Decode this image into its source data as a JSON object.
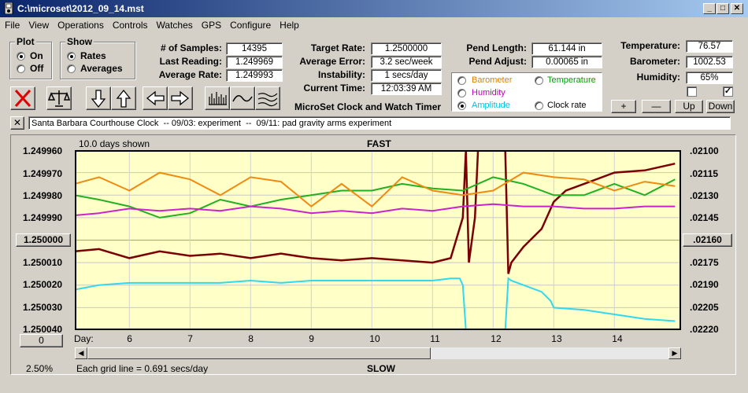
{
  "window": {
    "title": "C:\\microset\\2012_09_14.mst"
  },
  "menu": [
    "File",
    "View",
    "Operations",
    "Controls",
    "Watches",
    "GPS",
    "Configure",
    "Help"
  ],
  "plot_group": {
    "title": "Plot",
    "on": "On",
    "off": "Off",
    "selected": "On"
  },
  "show_group": {
    "title": "Show",
    "rates": "Rates",
    "averages": "Averages",
    "selected": "Rates"
  },
  "stats": {
    "samples_label": "# of Samples:",
    "samples": "14395",
    "last_label": "Last Reading:",
    "last": "1.249969",
    "avg_label": "Average Rate:",
    "avg": "1.249993"
  },
  "rate": {
    "target_label": "Target Rate:",
    "target": "1.2500000",
    "err_label": "Average Error:",
    "err": "3.2 sec/week",
    "inst_label": "Instability:",
    "inst": "1 secs/day",
    "time_label": "Current Time:",
    "time": "12:03:39 AM"
  },
  "pend": {
    "len_label": "Pend Length:",
    "len": "61.144 in",
    "adj_label": "Pend Adjust:",
    "adj": "0.00065 in"
  },
  "env": {
    "temp_label": "Temperature:",
    "temp": "76.57",
    "baro_label": "Barometer:",
    "baro": "1002.53",
    "hum_label": "Humidity:",
    "hum": "65%",
    "chk1": "",
    "chk2": "✓"
  },
  "series_select": {
    "barometer": "Barometer",
    "temperature": "Temperature",
    "humidity": "Humidity",
    "amplitude": "Amplitude",
    "clock_rate": "Clock rate",
    "selected": "Amplitude",
    "colors": {
      "barometer": "#e08000",
      "temperature": "#00a000",
      "humidity": "#c000c0",
      "amplitude": "#00c0e0",
      "clock_rate": "#000000"
    }
  },
  "buttons": {
    "plus": "+",
    "minus": "—",
    "up": "Up",
    "down": "Down"
  },
  "app_title": "MicroSet Clock and Watch Timer",
  "notes": "Santa Barbara Courthouse Clock  -- 09/03: experiment  --  09/11: pad gravity arms experiment",
  "close_x": "✕",
  "graph": {
    "days_shown": "10.0 days shown",
    "fast": "FAST",
    "slow": "SLOW",
    "day_label": "Day:",
    "grid_note": "Each grid line = 0.691 secs/day",
    "zoom": "2.50%",
    "left_center_btn": "1.250000",
    "right_center_btn": ".02160",
    "bottom_btn": "0",
    "left_ticks": [
      "1.249960",
      "1.249970",
      "1.249980",
      "1.249990",
      "1.250000",
      "1.250010",
      "1.250020",
      "1.250030",
      "1.250040"
    ],
    "right_ticks": [
      ".02100",
      ".02115",
      ".02130",
      ".02145",
      ".02160",
      ".02175",
      ".02190",
      ".02205",
      ".02220"
    ],
    "day_ticks": [
      "6",
      "7",
      "8",
      "9",
      "10",
      "11",
      "12",
      "13",
      "14"
    ]
  },
  "chart_data": {
    "type": "line",
    "xlabel": "Day:",
    "x_range": [
      5.1,
      15.1
    ],
    "ylim_left": [
      1.24996,
      1.25004
    ],
    "ylim_right": [
      0.021,
      0.0222
    ],
    "series": [
      {
        "name": "Clock rate",
        "color": "#7a0000",
        "x": [
          5.1,
          5.5,
          6.0,
          6.5,
          7.0,
          7.5,
          8.0,
          8.5,
          9.0,
          9.5,
          10.0,
          10.5,
          11.0,
          11.3,
          11.5,
          11.55,
          11.6,
          11.7,
          11.75,
          11.8,
          12.2,
          12.25,
          12.3,
          12.5,
          12.8,
          13.0,
          13.2,
          13.5,
          14.0,
          14.5,
          15.0
        ],
        "values": [
          1.250005,
          1.250004,
          1.250008,
          1.250005,
          1.250007,
          1.250006,
          1.250008,
          1.250006,
          1.250008,
          1.250009,
          1.250008,
          1.250009,
          1.25001,
          1.250008,
          1.24999,
          1.24996,
          1.25001,
          1.24999,
          1.24996,
          1.24996,
          1.24996,
          1.250015,
          1.25001,
          1.250003,
          1.249995,
          1.249983,
          1.249978,
          1.249975,
          1.24997,
          1.249969,
          1.249966
        ]
      },
      {
        "name": "Temperature",
        "color": "#20b020",
        "x": [
          5.1,
          5.5,
          6.0,
          6.5,
          7.0,
          7.5,
          8.0,
          8.5,
          9.0,
          9.5,
          10.0,
          10.5,
          11.0,
          11.5,
          12.0,
          12.5,
          13.0,
          13.5,
          14.0,
          14.5,
          15.0
        ],
        "values": [
          1.24998,
          1.249982,
          1.249985,
          1.24999,
          1.249988,
          1.249982,
          1.249985,
          1.249982,
          1.24998,
          1.249978,
          1.249978,
          1.249975,
          1.249977,
          1.249978,
          1.249972,
          1.249975,
          1.24998,
          1.24998,
          1.249975,
          1.24998,
          1.249973
        ]
      },
      {
        "name": "Barometer",
        "color": "#f08a10",
        "x": [
          5.1,
          5.5,
          6.0,
          6.5,
          7.0,
          7.5,
          8.0,
          8.5,
          9.0,
          9.5,
          10.0,
          10.5,
          11.0,
          11.5,
          12.0,
          12.5,
          13.0,
          13.5,
          14.0,
          14.5,
          15.0
        ],
        "values": [
          1.249975,
          1.249972,
          1.249978,
          1.24997,
          1.249973,
          1.24998,
          1.249972,
          1.249974,
          1.249985,
          1.249975,
          1.249985,
          1.249972,
          1.249978,
          1.24998,
          1.249978,
          1.24997,
          1.249972,
          1.249973,
          1.249978,
          1.249974,
          1.249976
        ]
      },
      {
        "name": "Humidity",
        "color": "#cc22cc",
        "x": [
          5.1,
          5.5,
          6.0,
          6.5,
          7.0,
          7.5,
          8.0,
          8.5,
          9.0,
          9.5,
          10.0,
          10.5,
          11.0,
          11.5,
          12.0,
          12.5,
          13.0,
          13.5,
          14.0,
          14.5,
          15.0
        ],
        "values": [
          1.249989,
          1.249988,
          1.249986,
          1.249987,
          1.249986,
          1.249987,
          1.249985,
          1.249986,
          1.249988,
          1.249987,
          1.249988,
          1.249986,
          1.249987,
          1.249985,
          1.249984,
          1.249985,
          1.249985,
          1.249986,
          1.249986,
          1.249985,
          1.249985
        ]
      },
      {
        "name": "Amplitude",
        "color": "#30d8f0",
        "x": [
          5.1,
          5.5,
          6.0,
          6.5,
          7.0,
          7.5,
          8.0,
          8.5,
          9.0,
          9.5,
          10.0,
          10.5,
          11.0,
          11.3,
          11.45,
          11.5,
          11.55,
          12.2,
          12.25,
          12.3,
          12.5,
          12.8,
          12.95,
          13.0,
          13.5,
          14.0,
          14.5,
          15.0
        ],
        "values": [
          1.250022,
          1.25002,
          1.250019,
          1.250019,
          1.250019,
          1.250019,
          1.250018,
          1.250019,
          1.250018,
          1.250018,
          1.250018,
          1.250018,
          1.250018,
          1.250017,
          1.250017,
          1.25002,
          1.25004,
          1.25004,
          1.250017,
          1.250018,
          1.25002,
          1.250023,
          1.250027,
          1.25003,
          1.250031,
          1.250033,
          1.250035,
          1.250036
        ]
      }
    ]
  }
}
